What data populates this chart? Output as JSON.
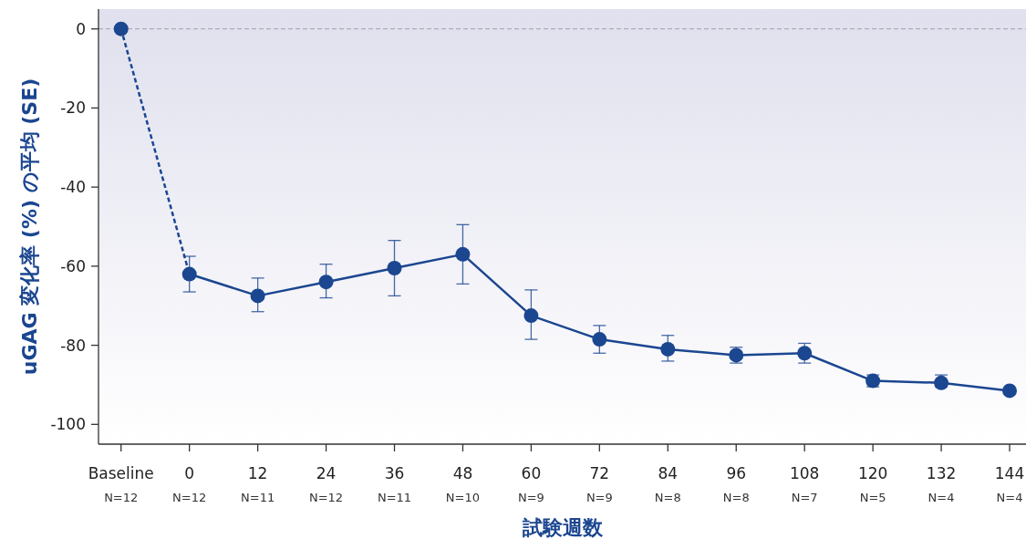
{
  "chart_data": {
    "type": "line",
    "ylabel": "uGAG 変化率 (%) の平均 (SE)",
    "xlabel": "試験週数",
    "categories": [
      "Baseline",
      "0",
      "12",
      "24",
      "36",
      "48",
      "60",
      "72",
      "84",
      "96",
      "108",
      "120",
      "132",
      "144"
    ],
    "series": [
      {
        "type": "line",
        "color": "#1b4690",
        "line_style": "dashed",
        "values": [
          0,
          -62,
          null,
          null,
          null,
          null,
          null,
          null,
          null,
          null,
          null,
          null,
          null,
          null
        ]
      },
      {
        "color": "#1b4690",
        "line_style": "solid",
        "marker": "circle",
        "values": [
          null,
          -62,
          -67.5,
          -64,
          -60.5,
          -57,
          -72.5,
          -78.5,
          -81,
          -82.5,
          -82,
          -89,
          -89.5,
          -91.5
        ],
        "errors": [
          null,
          [
            -66.5,
            -57.5
          ],
          [
            -71.5,
            -63
          ],
          [
            -68,
            -59.5
          ],
          [
            -67.5,
            -53.5
          ],
          [
            -64.5,
            -49.5
          ],
          [
            -78.5,
            -66
          ],
          [
            -82,
            -75
          ],
          [
            -84,
            -77.5
          ],
          [
            -84.5,
            -80.5
          ],
          [
            -84.5,
            -79.5
          ],
          [
            -90.5,
            -87.5
          ],
          [
            -90.5,
            -87.5
          ],
          null
        ]
      },
      {
        "type": "scatter",
        "color": "#1b4690",
        "marker": "circle",
        "values": [
          0,
          null,
          null,
          null,
          null,
          null,
          null,
          null,
          null,
          null,
          null,
          null,
          null,
          null
        ]
      }
    ],
    "ylim": [
      -105,
      5
    ],
    "yticks": [
      0,
      -20,
      -40,
      -60,
      -80,
      -100
    ],
    "ref_lines": [
      {
        "axis": "y",
        "value": 0,
        "color": "#a0a0b0",
        "line_style": "dashed"
      }
    ],
    "annotations": [
      "N=12",
      "N=12",
      "N=11",
      "N=12",
      "N=11",
      "N=10",
      "N=9",
      "N=9",
      "N=8",
      "N=8",
      "N=7",
      "N=5",
      "N=4",
      "N=4"
    ],
    "grid": false
  }
}
